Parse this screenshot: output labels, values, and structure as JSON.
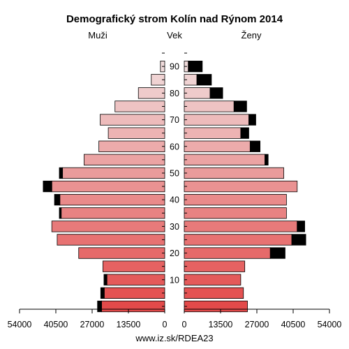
{
  "title": "Demografický strom Kolín nad Rýnom 2014",
  "footer": "www.iz.sk/RDEA23",
  "chart_data": {
    "type": "bar",
    "subtype": "population-pyramid",
    "title": "Demografický strom Kolín nad Rýnom 2014",
    "left_label": "Muži",
    "center_label": "Vek",
    "right_label": "Ženy",
    "age_ticks": [
      "90",
      "80",
      "70",
      "60",
      "50",
      "40",
      "30",
      "20",
      "10"
    ],
    "age_groups": [
      "95",
      "90",
      "85",
      "80",
      "75",
      "70",
      "65",
      "60",
      "55",
      "50",
      "45",
      "40",
      "35",
      "30",
      "25",
      "20",
      "15",
      "10",
      "5",
      "0"
    ],
    "x_ticks_left": [
      "54000",
      "40500",
      "27000",
      "13500",
      "0"
    ],
    "x_ticks_right": [
      "0",
      "13500",
      "27000",
      "40500",
      "54000"
    ],
    "xlim": [
      0,
      54000
    ],
    "series": [
      {
        "name": "Muži",
        "values": [
          0,
          1600,
          5000,
          9800,
          18500,
          24000,
          21000,
          24500,
          30000,
          38000,
          42000,
          39000,
          38500,
          42000,
          40000,
          32000,
          23000,
          21500,
          22500,
          23500
        ]
      },
      {
        "name": "Muži",
        "values": [
          0,
          0,
          0,
          0,
          0,
          0,
          0,
          0,
          0,
          1200,
          3200,
          2000,
          700,
          0,
          0,
          0,
          0,
          1100,
          1300,
          1500
        ]
      },
      {
        "name": "Ženy",
        "values": [
          0,
          1500,
          4700,
          9600,
          18500,
          24000,
          21000,
          24500,
          30000,
          37000,
          42000,
          38000,
          38000,
          42000,
          40000,
          32000,
          22500,
          21000,
          22000,
          23500
        ]
      },
      {
        "name": "Ženy",
        "values": [
          0,
          5200,
          5400,
          4700,
          4700,
          2600,
          3000,
          3700,
          1200,
          0,
          0,
          0,
          0,
          2800,
          5200,
          5500,
          0,
          0,
          0,
          0
        ]
      }
    ],
    "colors": {
      "bar_top": "#f1e3e3",
      "bar_bottom": "#e34a4a",
      "foreign": "#000000"
    },
    "grid": false,
    "legend": "none"
  }
}
